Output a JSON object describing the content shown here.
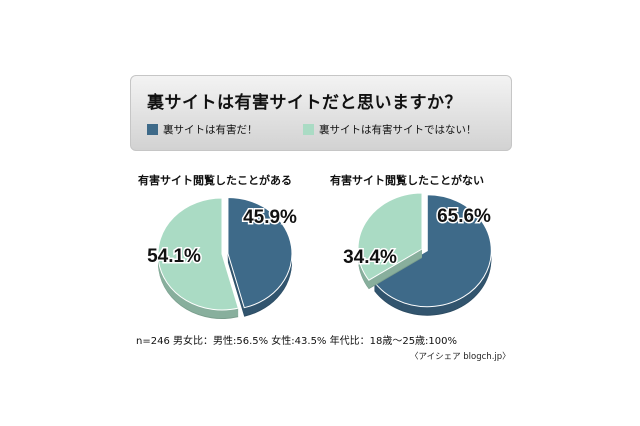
{
  "header": {
    "title": "裏サイトは有害サイトだと思いますか？",
    "legend": [
      {
        "label": "裏サイトは有害だ！",
        "color": "#3e6a89"
      },
      {
        "label": "裏サイトは有害サイトではない！",
        "color": "#aadbc4"
      }
    ]
  },
  "chart_data": [
    {
      "type": "pie",
      "title": "有害サイト閲覧したことがある",
      "slices": [
        {
          "name": "裏サイトは有害だ！",
          "value": 45.9,
          "label": "45.9%",
          "color": "#3e6a89"
        },
        {
          "name": "裏サイトは有害サイトではない！",
          "value": 54.1,
          "label": "54.1%",
          "color": "#aadbc4"
        }
      ]
    },
    {
      "type": "pie",
      "title": "有害サイト閲覧したことがない",
      "slices": [
        {
          "name": "裏サイトは有害だ！",
          "value": 65.6,
          "label": "65.6%",
          "color": "#3e6a89"
        },
        {
          "name": "裏サイトは有害サイトではない！",
          "value": 34.4,
          "label": "34.4%",
          "color": "#aadbc4"
        }
      ]
    }
  ],
  "footer": {
    "stats": "n=246 男女比：男性:56.5% 女性:43.5% 年代比：18歳～25歳:100%",
    "source": "〈アイシェア blogch.jp〉"
  }
}
